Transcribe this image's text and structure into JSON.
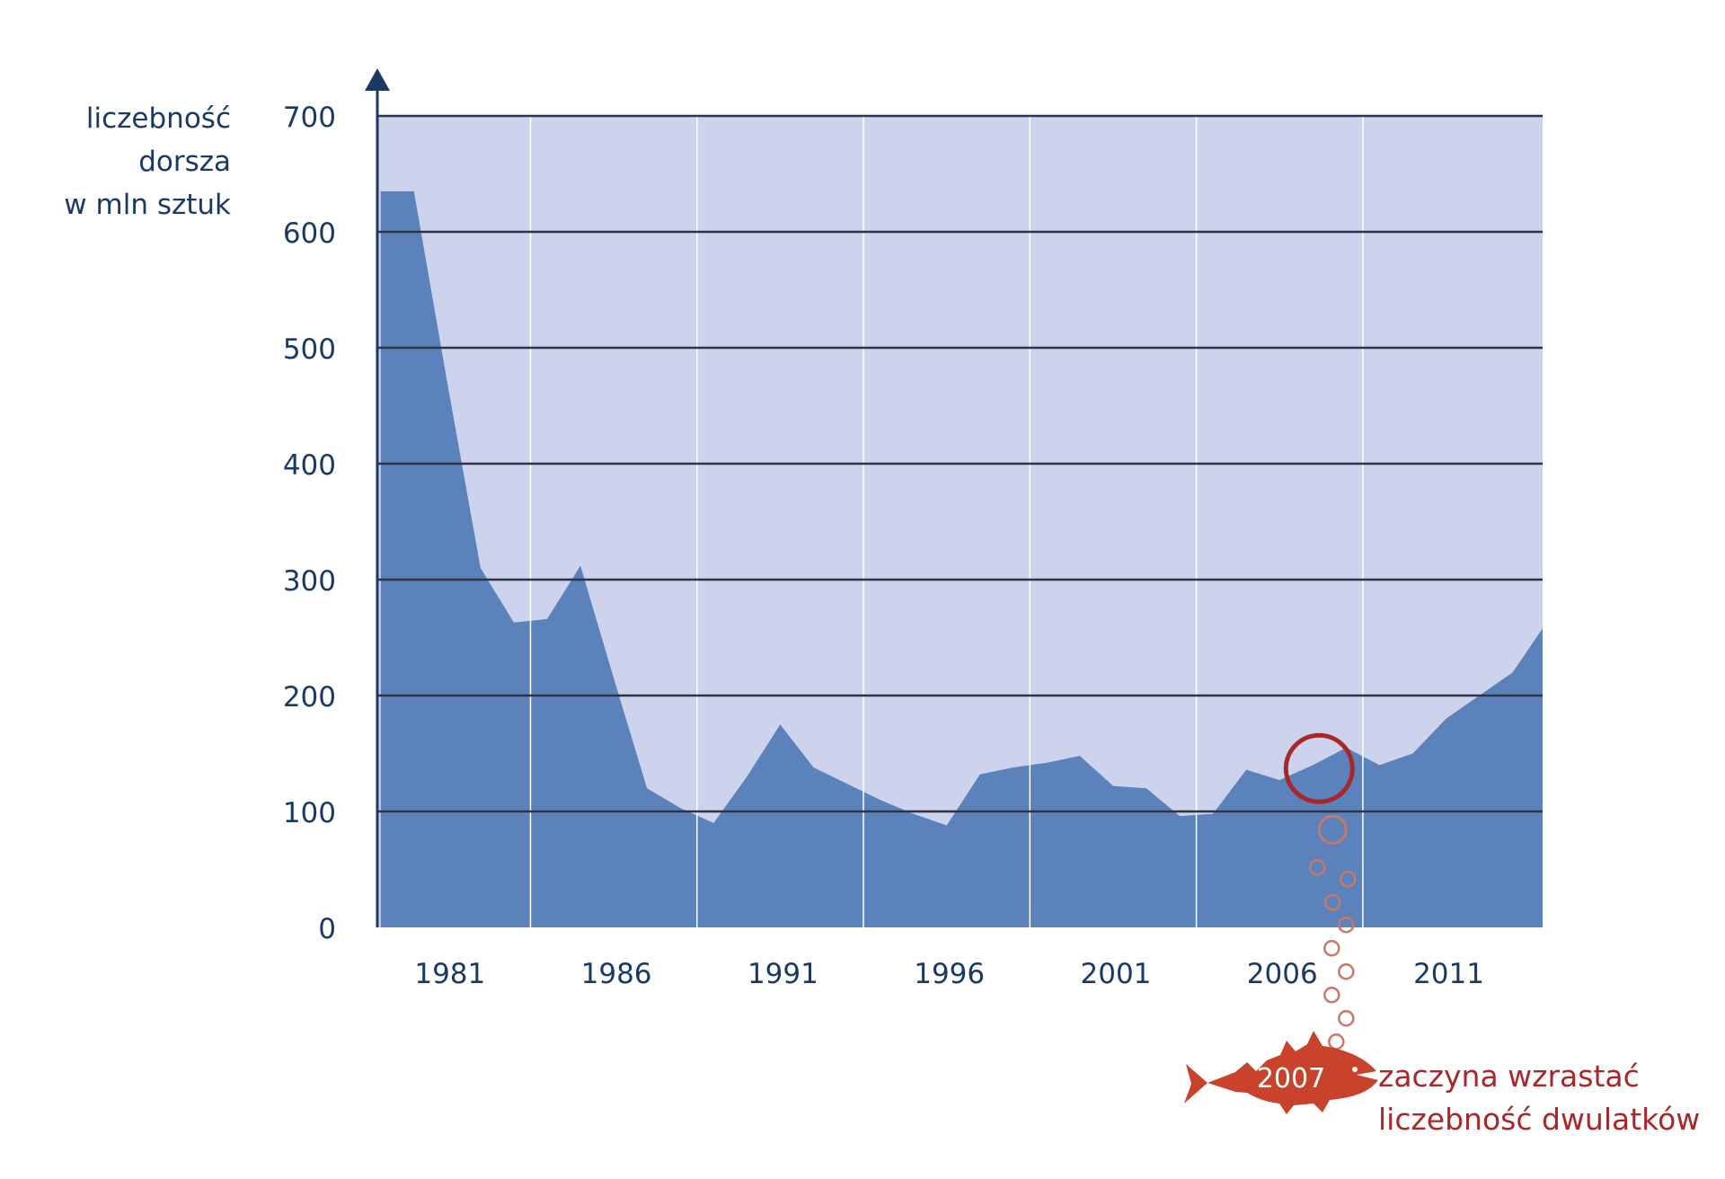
{
  "chart_data": {
    "type": "area",
    "ylabel": [
      "liczebność",
      "dorsza",
      "w mln sztuk"
    ],
    "ylim": [
      0,
      700
    ],
    "yticks": [
      0,
      100,
      200,
      300,
      400,
      500,
      600,
      700
    ],
    "xlim": [
      1978.9,
      2013.9
    ],
    "xticks": [
      1981,
      1986,
      1991,
      1996,
      2001,
      2006,
      2011
    ],
    "xtick_labels": [
      "1981",
      "1986",
      "1991",
      "1996",
      "2001",
      "2006",
      "2011"
    ],
    "grid": {
      "horizontal": true,
      "vertical": true
    },
    "colors": {
      "plot_background": "#cdd3ec",
      "area_fill": "#5b82bb",
      "axis": "#1b3a63",
      "annotation": "#a8272b",
      "bubbles": "#c8776a",
      "fish": "#c8422c"
    },
    "series": [
      {
        "x": [
          1979,
          1980,
          1981,
          1982,
          1983,
          1984,
          1985,
          1986,
          1987,
          1988,
          1989,
          1990,
          1991,
          1992,
          1993,
          1994,
          1995,
          1996,
          1997,
          1998,
          1999,
          2000,
          2001,
          2002,
          2003,
          2004,
          2005,
          2006,
          2007,
          2008,
          2009,
          2010,
          2011,
          2012,
          2013,
          2013.9
        ],
        "y": [
          635,
          635,
          470,
          310,
          263,
          266,
          312,
          215,
          120,
          103,
          90,
          130,
          175,
          138,
          124,
          110,
          98,
          88,
          132,
          138,
          142,
          148,
          122,
          120,
          96,
          98,
          136,
          127,
          140,
          155,
          140,
          150,
          180,
          200,
          220,
          258
        ]
      }
    ],
    "annotation": {
      "year": 2007,
      "value": 137,
      "fish_label": "2007",
      "text": [
        "zaczyna wzrastać",
        "liczebność dwulatków"
      ]
    }
  }
}
